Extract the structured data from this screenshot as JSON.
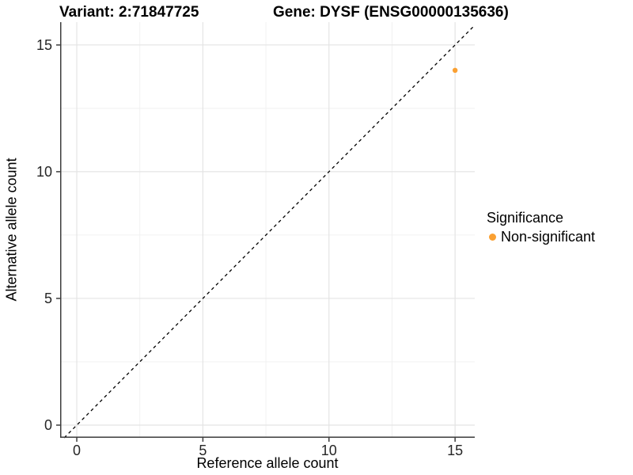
{
  "chart_data": {
    "type": "scatter",
    "titles": {
      "left": "Variant: 2:71847725",
      "right": "Gene: DYSF (ENSG00000135636)"
    },
    "xlabel": "Reference allele count",
    "ylabel": "Alternative allele count",
    "xlim": [
      -0.66,
      15.78
    ],
    "ylim": [
      -0.5,
      15.9
    ],
    "x_major_ticks": [
      0,
      5,
      10,
      15
    ],
    "y_major_ticks": [
      0,
      5,
      10,
      15
    ],
    "x_minor_ticks": [
      2.5,
      7.5,
      12.5
    ],
    "y_minor_ticks": [
      2.5,
      7.5,
      12.5
    ],
    "grid": "on",
    "identity_line": {
      "equation": "y = x",
      "style": "dashed",
      "color": "#000000"
    },
    "series": [
      {
        "name": "Non-significant",
        "color": "#FAA032",
        "points": [
          {
            "x": 15,
            "y": 14
          }
        ]
      }
    ],
    "legend": {
      "title": "Significance",
      "position": "right",
      "entries": [
        {
          "label": "Non-significant",
          "color": "#FAA032"
        }
      ]
    },
    "colors": {
      "grid_major": "#e4e4e4",
      "grid_minor": "#f1f1f1",
      "axis_line": "#3c3c3c",
      "tick_text": "#262626",
      "background": "#ffffff"
    }
  }
}
